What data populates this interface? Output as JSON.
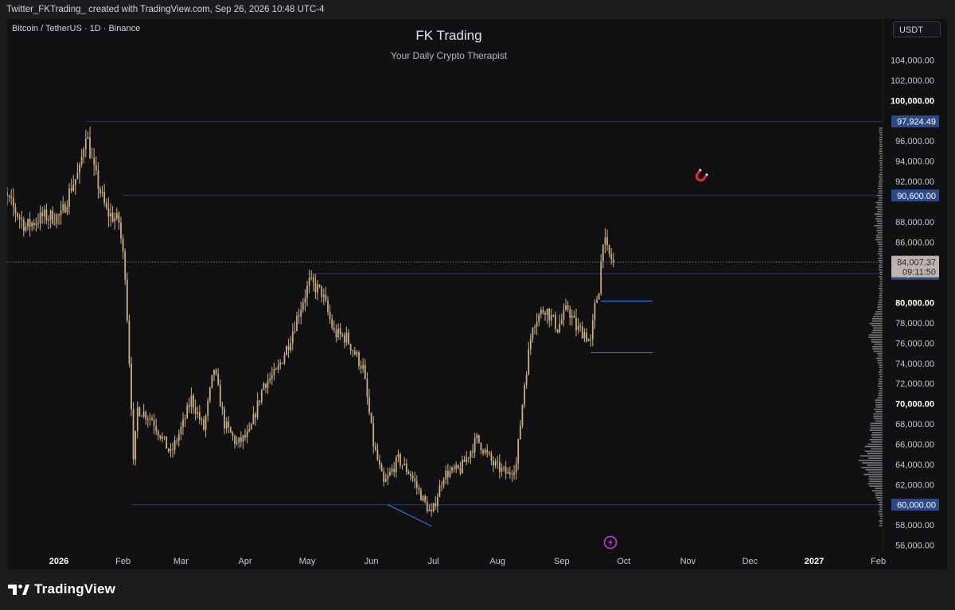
{
  "header": {
    "text": "Twitter_FKTrading_ created with TradingView.com, Sep 26, 2026 10:48 UTC-4"
  },
  "chart": {
    "symbol": "Bitcoin / TetherUS · 1D · Binance",
    "watermark_title": "FK Trading",
    "watermark_subtitle": "Your Daily Crypto Therapist",
    "currency": "USDT"
  },
  "footer": {
    "logo_text": "TradingView"
  },
  "colors": {
    "background": "#111113",
    "candles": "#c9ad86",
    "level_lines": "#2b3a63",
    "level_badge": "#2c4a8a",
    "drawn_lines": "#3a6fe0",
    "price_badge": "#bfb3ad"
  },
  "icons": {
    "magnet": "magnet-icon",
    "alert": "lightning-icon"
  },
  "chart_data": {
    "type": "candlestick",
    "title": "Bitcoin / TetherUS · 1D · Binance",
    "ylim": [
      55000,
      105500
    ],
    "y_ticks": [
      {
        "value": 104000,
        "label": "104,000.00"
      },
      {
        "value": 102000,
        "label": "102,000.00"
      },
      {
        "value": 100000,
        "label": "100,000.00",
        "bold": true
      },
      {
        "value": 96000,
        "label": "96,000.00"
      },
      {
        "value": 94000,
        "label": "94,000.00"
      },
      {
        "value": 92000,
        "label": "92,000.00"
      },
      {
        "value": 88000,
        "label": "88,000.00"
      },
      {
        "value": 86000,
        "label": "86,000.00"
      },
      {
        "value": 80000,
        "label": "80,000.00",
        "bold": true
      },
      {
        "value": 78000,
        "label": "78,000.00"
      },
      {
        "value": 76000,
        "label": "76,000.00"
      },
      {
        "value": 74000,
        "label": "74,000.00"
      },
      {
        "value": 72000,
        "label": "72,000.00"
      },
      {
        "value": 70000,
        "label": "70,000.00",
        "bold": true
      },
      {
        "value": 68000,
        "label": "68,000.00"
      },
      {
        "value": 66000,
        "label": "66,000.00"
      },
      {
        "value": 64000,
        "label": "64,000.00"
      },
      {
        "value": 62000,
        "label": "62,000.00"
      },
      {
        "value": 58000,
        "label": "58,000.00"
      },
      {
        "value": 56000,
        "label": "56,000.00"
      }
    ],
    "x_ticks": [
      {
        "date": "2026-01-01",
        "label": "2026",
        "bold": true
      },
      {
        "date": "2026-02-01",
        "label": "Feb"
      },
      {
        "date": "2026-03-01",
        "label": "Mar"
      },
      {
        "date": "2026-04-01",
        "label": "Apr"
      },
      {
        "date": "2026-05-01",
        "label": "May"
      },
      {
        "date": "2026-06-01",
        "label": "Jun"
      },
      {
        "date": "2026-07-01",
        "label": "Jul"
      },
      {
        "date": "2026-08-01",
        "label": "Aug"
      },
      {
        "date": "2026-09-01",
        "label": "Sep"
      },
      {
        "date": "2026-10-01",
        "label": "Oct"
      },
      {
        "date": "2026-11-01",
        "label": "Nov"
      },
      {
        "date": "2026-12-01",
        "label": "Dec"
      },
      {
        "date": "2027-01-01",
        "label": "2027",
        "bold": true
      },
      {
        "date": "2027-02-01",
        "label": "Feb"
      }
    ],
    "levels": [
      {
        "value": 97924.49,
        "label": "97,924.49",
        "start": "2026-01-14"
      },
      {
        "value": 90600,
        "label": "90,600.00",
        "start": "2026-02-01"
      },
      {
        "value": 82850,
        "label": "82,850.00",
        "start": "2026-05-01"
      },
      {
        "value": 60000,
        "label": "60,000.00",
        "start": "2026-02-05"
      }
    ],
    "current_price": {
      "value": 84007.37,
      "label": "84,007.37",
      "countdown": "09:11:50"
    },
    "segments": [
      {
        "from": {
          "date": "2026-06-09",
          "price": 60000
        },
        "to": {
          "date": "2026-06-30",
          "price": 57900
        }
      },
      {
        "from": {
          "date": "2026-09-20",
          "price": 80150
        },
        "to": {
          "date": "2026-10-15",
          "price": 80150
        }
      },
      {
        "from": {
          "date": "2026-09-15",
          "price": 75050
        },
        "to": {
          "date": "2026-10-15",
          "price": 75050
        }
      }
    ],
    "anchors": [
      {
        "date": "2025-12-01",
        "close": 92000
      },
      {
        "date": "2025-12-08",
        "close": 90000
      },
      {
        "date": "2025-12-16",
        "close": 87500
      },
      {
        "date": "2025-12-24",
        "close": 88500
      },
      {
        "date": "2026-01-02",
        "close": 88500
      },
      {
        "date": "2026-01-07",
        "close": 91500
      },
      {
        "date": "2026-01-11",
        "close": 93000
      },
      {
        "date": "2026-01-14",
        "close": 97000
      },
      {
        "date": "2026-01-18",
        "close": 93000
      },
      {
        "date": "2026-01-24",
        "close": 89000
      },
      {
        "date": "2026-01-30",
        "close": 88000
      },
      {
        "date": "2026-02-02",
        "close": 83000
      },
      {
        "date": "2026-02-05",
        "close": 70000
      },
      {
        "date": "2026-02-06",
        "close": 64000
      },
      {
        "date": "2026-02-08",
        "close": 69500
      },
      {
        "date": "2026-02-15",
        "close": 68500
      },
      {
        "date": "2026-02-24",
        "close": 65000
      },
      {
        "date": "2026-03-02",
        "close": 68000
      },
      {
        "date": "2026-03-06",
        "close": 70500
      },
      {
        "date": "2026-03-12",
        "close": 67500
      },
      {
        "date": "2026-03-17",
        "close": 73500
      },
      {
        "date": "2026-03-22",
        "close": 68000
      },
      {
        "date": "2026-03-28",
        "close": 66000
      },
      {
        "date": "2026-04-03",
        "close": 67000
      },
      {
        "date": "2026-04-10",
        "close": 72000
      },
      {
        "date": "2026-04-16",
        "close": 73000
      },
      {
        "date": "2026-04-22",
        "close": 76000
      },
      {
        "date": "2026-04-26",
        "close": 78500
      },
      {
        "date": "2026-05-02",
        "close": 82000
      },
      {
        "date": "2026-05-08",
        "close": 81000
      },
      {
        "date": "2026-05-14",
        "close": 77000
      },
      {
        "date": "2026-05-20",
        "close": 76500
      },
      {
        "date": "2026-05-28",
        "close": 73500
      },
      {
        "date": "2026-06-02",
        "close": 66000
      },
      {
        "date": "2026-06-07",
        "close": 62000
      },
      {
        "date": "2026-06-14",
        "close": 64500
      },
      {
        "date": "2026-06-20",
        "close": 63000
      },
      {
        "date": "2026-06-26",
        "close": 60500
      },
      {
        "date": "2026-06-30",
        "close": 59000
      },
      {
        "date": "2026-07-06",
        "close": 63000
      },
      {
        "date": "2026-07-14",
        "close": 63500
      },
      {
        "date": "2026-07-22",
        "close": 66500
      },
      {
        "date": "2026-07-30",
        "close": 64000
      },
      {
        "date": "2026-08-06",
        "close": 63000
      },
      {
        "date": "2026-08-10",
        "close": 64000
      },
      {
        "date": "2026-08-14",
        "close": 72000
      },
      {
        "date": "2026-08-18",
        "close": 78000
      },
      {
        "date": "2026-08-24",
        "close": 79500
      },
      {
        "date": "2026-08-30",
        "close": 77500
      },
      {
        "date": "2026-09-04",
        "close": 79500
      },
      {
        "date": "2026-09-08",
        "close": 77500
      },
      {
        "date": "2026-09-12",
        "close": 77000
      },
      {
        "date": "2026-09-15",
        "close": 76000
      },
      {
        "date": "2026-09-17",
        "close": 79500
      },
      {
        "date": "2026-09-19",
        "close": 81500
      },
      {
        "date": "2026-09-21",
        "close": 86500
      },
      {
        "date": "2026-09-23",
        "close": 85000
      },
      {
        "date": "2026-09-26",
        "close": 84007
      }
    ]
  }
}
